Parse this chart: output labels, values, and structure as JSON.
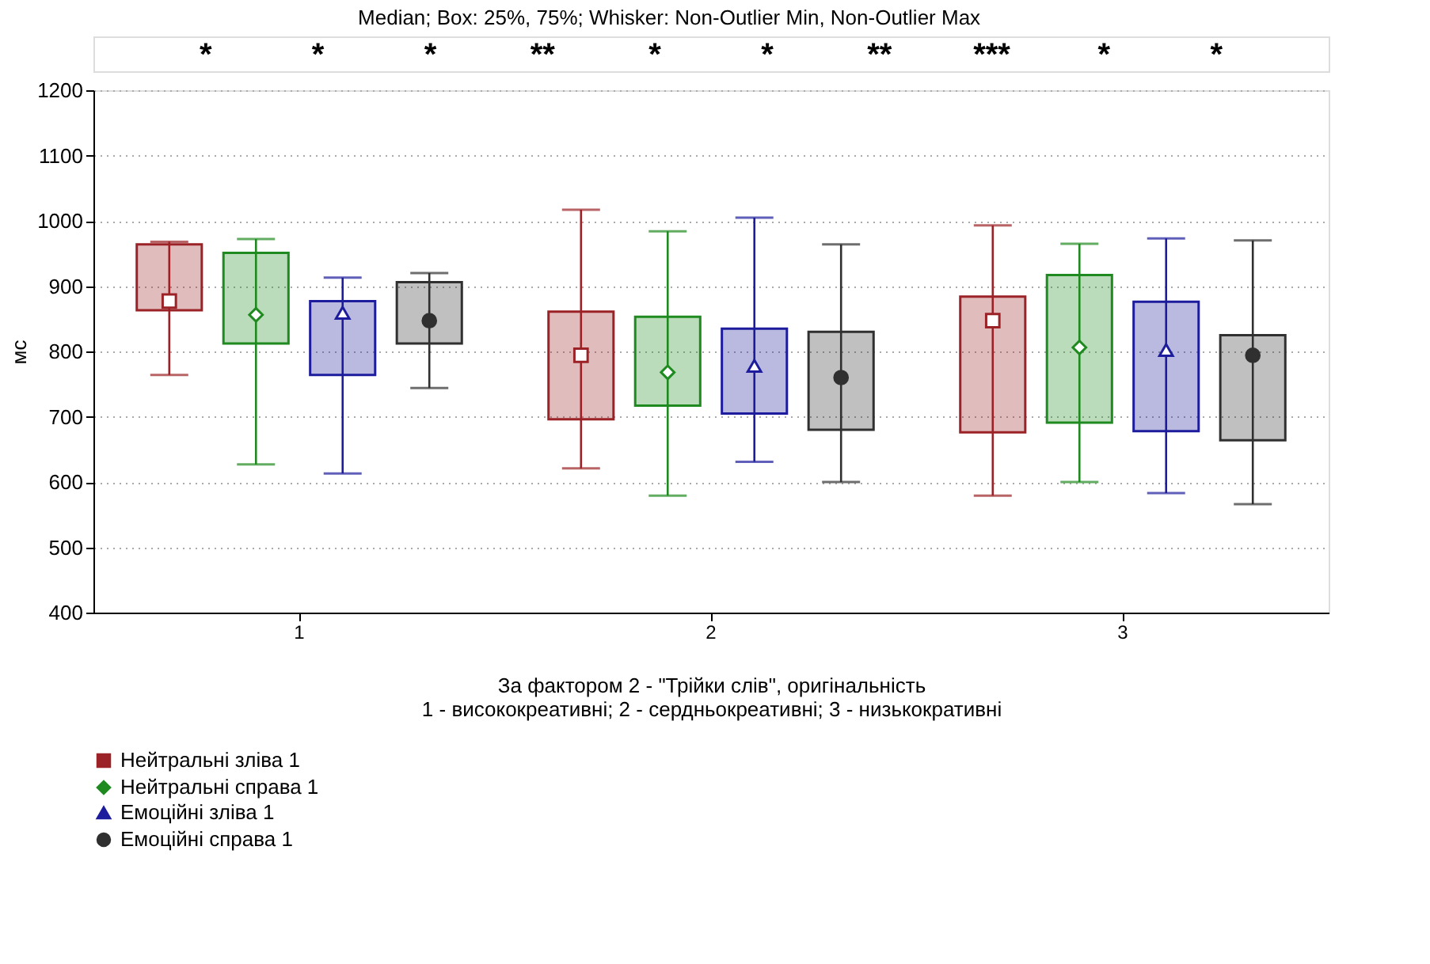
{
  "chart_data": {
    "type": "box",
    "title": "Median;  Box: 25%, 75%;  Whisker: Non-Outlier Min, Non-Outlier Max",
    "xlabel": "За фактором 2 - \"Трійки слів\", оригінальність\n1 - висококреативні; 2 - сердньокреативні; 3 - низькокративні",
    "ylabel": "мс",
    "categories": [
      "1",
      "2",
      "3"
    ],
    "ylim": [
      400,
      1200
    ],
    "yticks": [
      400,
      500,
      600,
      700,
      800,
      900,
      1000,
      1100,
      1200
    ],
    "grid": "y",
    "legend": "bottom",
    "series": [
      {
        "name": "Нейтральні зліва 1",
        "color": "#9b2226",
        "marker": "square",
        "boxes": [
          {
            "low": 764,
            "q1": 863,
            "median": 877,
            "q3": 964,
            "high": 968
          },
          {
            "low": 621,
            "q1": 696,
            "median": 794,
            "q3": 861,
            "high": 1017
          },
          {
            "low": 579,
            "q1": 676,
            "median": 847,
            "q3": 884,
            "high": 993
          }
        ]
      },
      {
        "name": "Нейтральні справа 1",
        "color": "#1f8a1f",
        "marker": "diamond",
        "boxes": [
          {
            "low": 627,
            "q1": 812,
            "median": 856,
            "q3": 951,
            "high": 972
          },
          {
            "low": 579,
            "q1": 717,
            "median": 768,
            "q3": 853,
            "high": 984
          },
          {
            "low": 600,
            "q1": 691,
            "median": 806,
            "q3": 917,
            "high": 965
          }
        ]
      },
      {
        "name": "Емоційні зліва 1",
        "color": "#1c1c9c",
        "marker": "triangle",
        "boxes": [
          {
            "low": 613,
            "q1": 764,
            "median": 859,
            "q3": 877,
            "high": 913
          },
          {
            "low": 631,
            "q1": 705,
            "median": 778,
            "q3": 835,
            "high": 1005
          },
          {
            "low": 583,
            "q1": 678,
            "median": 802,
            "q3": 876,
            "high": 973
          }
        ]
      },
      {
        "name": "Емоційні справа 1",
        "color": "#303030",
        "marker": "circle",
        "boxes": [
          {
            "low": 744,
            "q1": 812,
            "median": 847,
            "q3": 906,
            "high": 920
          },
          {
            "low": 600,
            "q1": 680,
            "median": 760,
            "q3": 830,
            "high": 964
          },
          {
            "low": 566,
            "q1": 664,
            "median": 794,
            "q3": 825,
            "high": 970
          }
        ]
      }
    ],
    "annotations": [
      "*",
      "*",
      "*",
      "**",
      "*",
      "*",
      "**",
      "***",
      "*",
      "*"
    ]
  }
}
